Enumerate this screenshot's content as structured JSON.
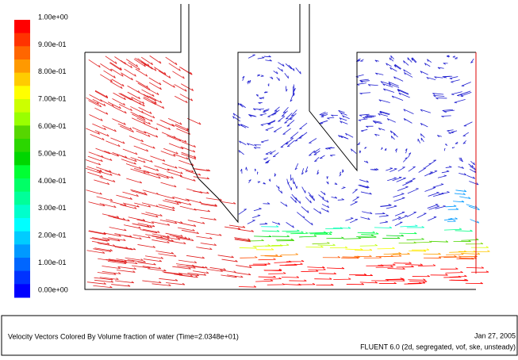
{
  "colorbar": {
    "labels": [
      "1.00e+00",
      "9.00e-01",
      "8.00e-01",
      "7.00e-01",
      "6.00e-01",
      "5.00e-01",
      "4.00e-01",
      "3.00e-01",
      "2.00e-01",
      "1.00e-01",
      "0.00e+00"
    ]
  },
  "footer": {
    "caption": "Velocity Vectors Colored By Volume fraction of water  (Time=2.0348e+01)",
    "date": "Jan 27, 2005",
    "software": "FLUENT 6.0 (2d, segregated, vof, ske, unsteady)"
  }
}
